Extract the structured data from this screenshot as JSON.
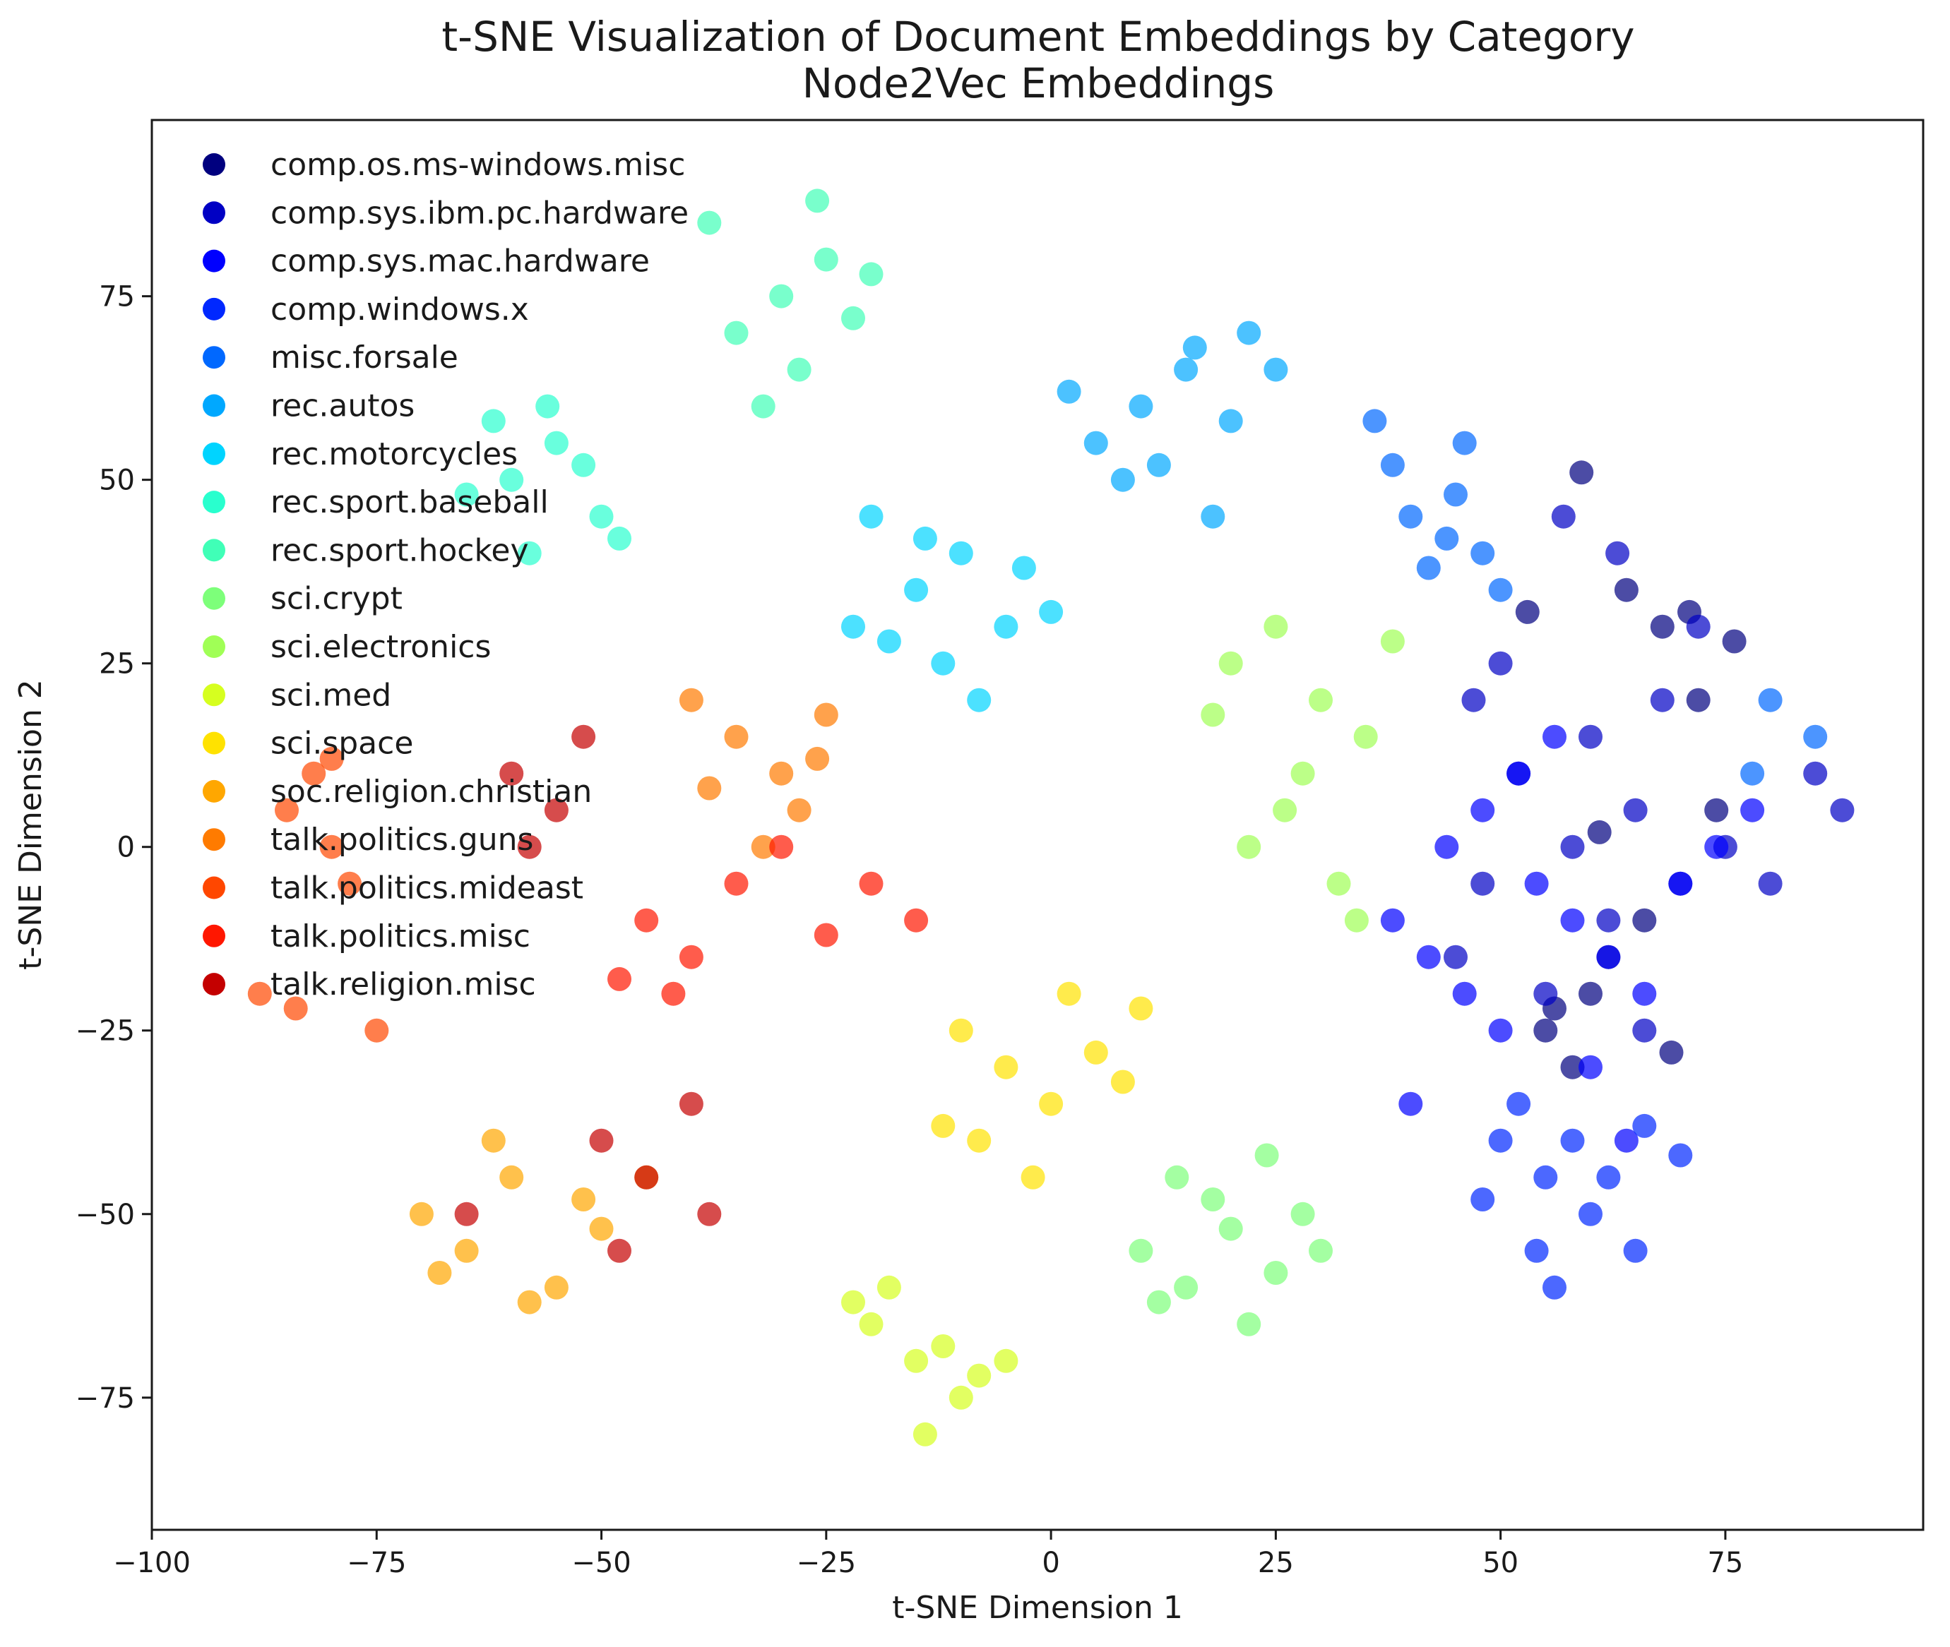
{
  "chart_data": {
    "type": "scatter",
    "title": "t-SNE Visualization of Document Embeddings by Category",
    "subtitle": "Node2Vec Embeddings",
    "xlabel": "t-SNE Dimension 1",
    "ylabel": "t-SNE Dimension 2",
    "xlim": [
      -100,
      97
    ],
    "ylim": [
      -93,
      99
    ],
    "x_ticks": [
      -100,
      -75,
      -50,
      -25,
      0,
      25,
      50,
      75
    ],
    "x_tick_labels": [
      "−100",
      "−75",
      "−50",
      "−25",
      "0",
      "25",
      "50",
      "75"
    ],
    "y_ticks": [
      -75,
      -50,
      -25,
      0,
      25,
      50,
      75
    ],
    "y_tick_labels": [
      "−75",
      "−50",
      "−25",
      "0",
      "25",
      "50",
      "75"
    ],
    "grid": false,
    "legend_position": "top-left",
    "marker_opacity": 0.7,
    "series": [
      {
        "name": "comp.os.ms-windows.misc",
        "color": "#00007f",
        "x": [
          61,
          71,
          76,
          68,
          64,
          72,
          59,
          55,
          60,
          62,
          58,
          66,
          74,
          53,
          69,
          56
        ],
        "y": [
          2,
          32,
          28,
          30,
          35,
          20,
          51,
          -25,
          -20,
          -15,
          -30,
          -10,
          5,
          32,
          -28,
          -22
        ]
      },
      {
        "name": "comp.sys.ibm.pc.hardware",
        "color": "#0000c4",
        "x": [
          52,
          60,
          65,
          70,
          58,
          45,
          48,
          55,
          62,
          68,
          72,
          66,
          50,
          57,
          63,
          75,
          80,
          85,
          88,
          47
        ],
        "y": [
          10,
          15,
          5,
          -5,
          0,
          -15,
          -5,
          -20,
          -10,
          20,
          30,
          -25,
          25,
          45,
          40,
          0,
          -5,
          10,
          5,
          20
        ]
      },
      {
        "name": "comp.sys.mac.hardware",
        "color": "#0000ff",
        "x": [
          38,
          42,
          46,
          50,
          54,
          58,
          62,
          66,
          44,
          48,
          52,
          56,
          60,
          40,
          64,
          70,
          74,
          78
        ],
        "y": [
          -10,
          -15,
          -20,
          -25,
          -5,
          -10,
          -15,
          -20,
          0,
          5,
          10,
          15,
          -30,
          -35,
          -40,
          -5,
          0,
          5
        ]
      },
      {
        "name": "comp.windows.x",
        "color": "#0028ff",
        "x": [
          50,
          55,
          60,
          65,
          52,
          58,
          62,
          54,
          66,
          48,
          70,
          56
        ],
        "y": [
          -40,
          -45,
          -50,
          -55,
          -35,
          -40,
          -45,
          -55,
          -38,
          -48,
          -42,
          -60
        ]
      },
      {
        "name": "misc.forsale",
        "color": "#0068ff",
        "x": [
          45,
          48,
          40,
          42,
          46,
          50,
          38,
          44,
          80,
          78,
          85,
          36
        ],
        "y": [
          48,
          40,
          45,
          38,
          55,
          35,
          52,
          42,
          20,
          10,
          15,
          58
        ]
      },
      {
        "name": "rec.autos",
        "color": "#00a8ff",
        "x": [
          5,
          10,
          15,
          20,
          8,
          12,
          18,
          2,
          16,
          22,
          25
        ],
        "y": [
          55,
          60,
          65,
          58,
          50,
          52,
          45,
          62,
          68,
          70,
          65
        ]
      },
      {
        "name": "rec.motorcycles",
        "color": "#00d4ff",
        "x": [
          -15,
          -10,
          -5,
          -20,
          -12,
          -8,
          -18,
          0,
          -3,
          -22,
          -14
        ],
        "y": [
          35,
          40,
          30,
          45,
          25,
          20,
          28,
          32,
          38,
          30,
          42
        ]
      },
      {
        "name": "rec.sport.baseball",
        "color": "#29ffce",
        "x": [
          -60,
          -55,
          -50,
          -65,
          -58,
          -52,
          -62,
          -48,
          -56
        ],
        "y": [
          50,
          55,
          45,
          48,
          40,
          52,
          58,
          42,
          60
        ]
      },
      {
        "name": "rec.sport.hockey",
        "color": "#40ffb7",
        "x": [
          -35,
          -30,
          -25,
          -28,
          -32,
          -22,
          -38,
          -26,
          -20
        ],
        "y": [
          70,
          75,
          80,
          65,
          60,
          72,
          85,
          88,
          78
        ]
      },
      {
        "name": "sci.crypt",
        "color": "#7dff7a",
        "x": [
          10,
          15,
          20,
          25,
          18,
          22,
          12,
          28,
          14,
          24,
          30
        ],
        "y": [
          -55,
          -60,
          -52,
          -58,
          -48,
          -65,
          -62,
          -50,
          -45,
          -42,
          -55
        ]
      },
      {
        "name": "sci.electronics",
        "color": "#a0ff56",
        "x": [
          20,
          25,
          30,
          35,
          28,
          22,
          32,
          26,
          38,
          18,
          34
        ],
        "y": [
          25,
          30,
          20,
          15,
          10,
          0,
          -5,
          5,
          28,
          18,
          -10
        ]
      },
      {
        "name": "sci.med",
        "color": "#d6ff1f",
        "x": [
          -20,
          -15,
          -10,
          -18,
          -12,
          -8,
          -22,
          -14,
          -5
        ],
        "y": [
          -65,
          -70,
          -75,
          -60,
          -68,
          -72,
          -62,
          -80,
          -70
        ]
      },
      {
        "name": "sci.space",
        "color": "#ffe200",
        "x": [
          -10,
          -5,
          0,
          5,
          -8,
          2,
          8,
          -2,
          10,
          -12
        ],
        "y": [
          -25,
          -30,
          -35,
          -28,
          -40,
          -20,
          -32,
          -45,
          -22,
          -38
        ]
      },
      {
        "name": "soc.religion.christian",
        "color": "#ffa700",
        "x": [
          -70,
          -65,
          -60,
          -55,
          -50,
          -62,
          -58,
          -52,
          -68,
          -45
        ],
        "y": [
          -50,
          -55,
          -45,
          -60,
          -52,
          -40,
          -62,
          -48,
          -58,
          -45
        ]
      },
      {
        "name": "talk.politics.guns",
        "color": "#ff7b00",
        "x": [
          -35,
          -30,
          -28,
          -40,
          -32,
          -25,
          -38,
          -26
        ],
        "y": [
          15,
          10,
          5,
          20,
          0,
          18,
          8,
          12
        ]
      },
      {
        "name": "talk.politics.mideast",
        "color": "#ff4700",
        "x": [
          -85,
          -80,
          -78,
          -82,
          -88,
          -75,
          -84,
          -80
        ],
        "y": [
          5,
          0,
          -5,
          10,
          -20,
          -25,
          -22,
          12
        ]
      },
      {
        "name": "talk.politics.misc",
        "color": "#ff1700",
        "x": [
          -45,
          -40,
          -35,
          -30,
          -20,
          -15,
          -48,
          -42,
          -25
        ],
        "y": [
          -10,
          -15,
          -5,
          0,
          -5,
          -10,
          -18,
          -20,
          -12
        ]
      },
      {
        "name": "talk.religion.misc",
        "color": "#c40000",
        "x": [
          -60,
          -55,
          -50,
          -45,
          -40,
          -65,
          -48,
          -38,
          -58,
          -52
        ],
        "y": [
          10,
          5,
          -40,
          -45,
          -35,
          -50,
          -55,
          -50,
          0,
          15
        ]
      }
    ]
  }
}
